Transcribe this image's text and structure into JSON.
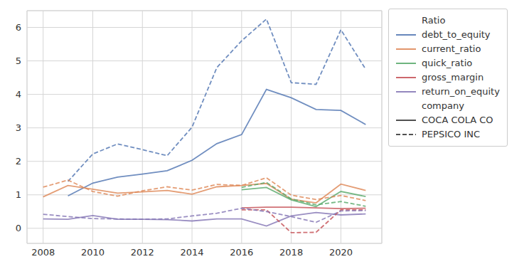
{
  "chart_data": {
    "type": "line",
    "x": [
      2008,
      2009,
      2010,
      2011,
      2012,
      2013,
      2014,
      2015,
      2016,
      2017,
      2018,
      2019,
      2020,
      2021
    ],
    "xlim": [
      2007.35,
      2021.65
    ],
    "xticks": [
      2008,
      2010,
      2012,
      2014,
      2016,
      2018,
      2020
    ],
    "ylim": [
      -0.45,
      6.5
    ],
    "yticks": [
      0,
      1,
      2,
      3,
      4,
      5,
      6
    ],
    "grid": true,
    "legend": "right",
    "hue_title": "Ratio",
    "hue": [
      {
        "name": "debt_to_equity",
        "color": "#4c72b0"
      },
      {
        "name": "current_ratio",
        "color": "#dd8452"
      },
      {
        "name": "quick_ratio",
        "color": "#55a868"
      },
      {
        "name": "gross_margin",
        "color": "#c44e52"
      },
      {
        "name": "return_on_equity",
        "color": "#8172b3"
      }
    ],
    "style_title": "company",
    "styles": [
      {
        "name": "COCA COLA CO",
        "line_style": "solid"
      },
      {
        "name": "PEPSICO INC",
        "line_style": "dashed"
      }
    ],
    "series": [
      {
        "name": "debt_to_equity",
        "company": "COCA COLA CO",
        "values": [
          null,
          0.97,
          1.35,
          1.53,
          1.62,
          1.72,
          2.03,
          2.53,
          2.8,
          4.15,
          3.9,
          3.55,
          3.52,
          3.1
        ]
      },
      {
        "name": "current_ratio",
        "company": "COCA COLA CO",
        "values": [
          0.94,
          1.28,
          1.17,
          1.05,
          1.09,
          1.13,
          1.02,
          1.24,
          1.28,
          1.34,
          0.87,
          0.76,
          1.32,
          1.13
        ]
      },
      {
        "name": "quick_ratio",
        "company": "COCA COLA CO",
        "values": [
          null,
          null,
          null,
          null,
          null,
          null,
          null,
          null,
          1.15,
          1.22,
          0.85,
          0.65,
          1.1,
          0.95
        ]
      },
      {
        "name": "gross_margin",
        "company": "COCA COLA CO",
        "values": [
          null,
          null,
          null,
          null,
          null,
          null,
          null,
          null,
          0.61,
          0.63,
          0.63,
          0.61,
          0.59,
          0.6
        ]
      },
      {
        "name": "return_on_equity",
        "company": "COCA COLA CO",
        "values": [
          0.28,
          0.27,
          0.38,
          0.27,
          0.27,
          0.26,
          0.22,
          0.28,
          0.28,
          0.07,
          0.37,
          0.47,
          0.4,
          0.43
        ]
      },
      {
        "name": "debt_to_equity",
        "company": "PEPSICO INC",
        "values": [
          null,
          1.4,
          2.22,
          2.52,
          2.35,
          2.17,
          3.02,
          4.8,
          5.6,
          6.25,
          4.35,
          4.3,
          5.93,
          4.75
        ]
      },
      {
        "name": "current_ratio",
        "company": "PEPSICO INC",
        "values": [
          1.23,
          1.44,
          1.1,
          0.96,
          1.12,
          1.24,
          1.14,
          1.31,
          1.28,
          1.51,
          0.99,
          0.86,
          0.98,
          0.83
        ]
      },
      {
        "name": "quick_ratio",
        "company": "PEPSICO INC",
        "values": [
          null,
          null,
          null,
          null,
          null,
          null,
          null,
          null,
          1.22,
          1.37,
          0.88,
          0.7,
          0.8,
          0.66
        ]
      },
      {
        "name": "gross_margin",
        "company": "PEPSICO INC",
        "values": [
          null,
          null,
          null,
          null,
          null,
          null,
          null,
          null,
          0.55,
          0.55,
          -0.13,
          -0.12,
          0.55,
          0.55
        ]
      },
      {
        "name": "return_on_equity",
        "company": "PEPSICO INC",
        "values": [
          0.42,
          0.35,
          0.29,
          0.28,
          0.27,
          0.28,
          0.37,
          0.45,
          0.6,
          0.5,
          0.35,
          0.18,
          0.52,
          0.53
        ]
      }
    ]
  }
}
